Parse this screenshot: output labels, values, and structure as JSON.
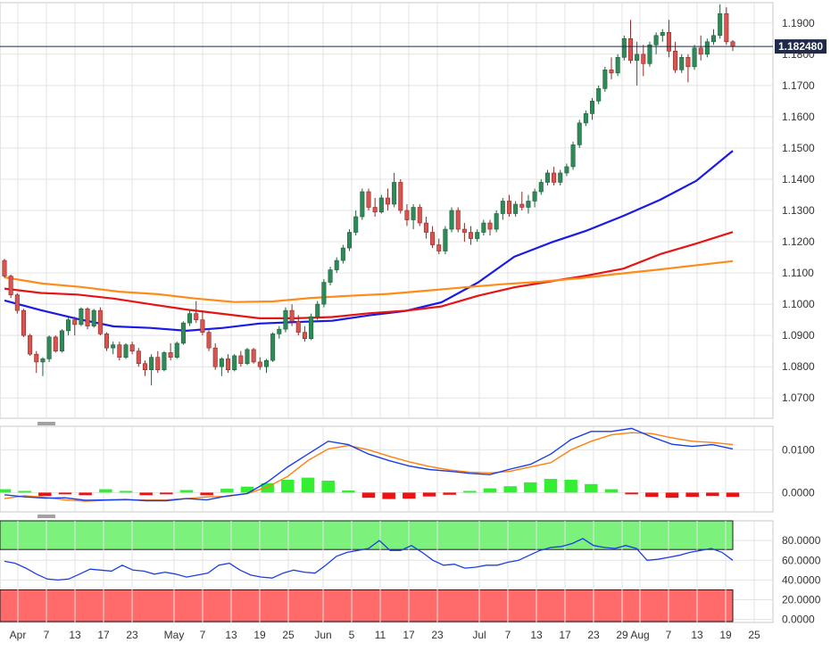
{
  "chart_data": [
    {
      "type": "candlestick",
      "yticks": [
        1.07,
        1.08,
        1.09,
        1.1,
        1.11,
        1.12,
        1.13,
        1.14,
        1.15,
        1.16,
        1.17,
        1.18,
        1.19
      ],
      "ylim": [
        1.0635,
        1.1965
      ],
      "current_price": 1.18248,
      "current_price_label": "1.182480",
      "candles": [
        [
          1.114,
          1.1145,
          1.1085,
          1.109
        ],
        [
          1.109,
          1.1095,
          1.102,
          1.103
        ],
        [
          1.103,
          1.1035,
          1.097,
          1.098
        ],
        [
          1.098,
          1.0985,
          1.0895,
          1.09
        ],
        [
          1.09,
          1.0905,
          1.0835,
          1.084
        ],
        [
          1.084,
          1.085,
          1.078,
          1.0815
        ],
        [
          1.0815,
          1.083,
          1.077,
          1.0825
        ],
        [
          1.0825,
          1.09,
          1.0815,
          1.0895
        ],
        [
          1.0895,
          1.09,
          1.0845,
          1.085
        ],
        [
          1.085,
          1.092,
          1.0845,
          1.0915
        ],
        [
          1.0915,
          1.096,
          1.09,
          1.095
        ],
        [
          1.095,
          1.096,
          1.09,
          1.0935
        ],
        [
          1.0935,
          1.099,
          1.093,
          1.0985
        ],
        [
          1.0985,
          1.099,
          1.092,
          1.093
        ],
        [
          1.093,
          1.0985,
          1.0925,
          1.098
        ],
        [
          1.098,
          1.099,
          1.09,
          1.0905
        ],
        [
          1.0905,
          1.091,
          1.085,
          1.086
        ],
        [
          1.086,
          1.088,
          1.084,
          1.087
        ],
        [
          1.087,
          1.088,
          1.082,
          1.083
        ],
        [
          1.083,
          1.0875,
          1.0825,
          1.087
        ],
        [
          1.087,
          1.088,
          1.084,
          1.085
        ],
        [
          1.085,
          1.086,
          1.08,
          1.081
        ],
        [
          1.081,
          1.082,
          1.077,
          1.079
        ],
        [
          1.079,
          1.084,
          1.074,
          1.083
        ],
        [
          1.083,
          1.085,
          1.078,
          1.079
        ],
        [
          1.079,
          1.085,
          1.0785,
          1.0845
        ],
        [
          1.0845,
          1.0875,
          1.082,
          1.083
        ],
        [
          1.083,
          1.088,
          1.0825,
          1.0875
        ],
        [
          1.0875,
          1.0945,
          1.087,
          1.094
        ],
        [
          1.094,
          1.098,
          1.093,
          1.097
        ],
        [
          1.097,
          1.101,
          1.094,
          1.095
        ],
        [
          1.095,
          1.098,
          1.09,
          1.091
        ],
        [
          1.091,
          1.092,
          1.085,
          1.086
        ],
        [
          1.086,
          1.0875,
          1.079,
          1.08
        ],
        [
          1.08,
          1.083,
          1.077,
          1.0825
        ],
        [
          1.0825,
          1.084,
          1.078,
          1.079
        ],
        [
          1.079,
          1.084,
          1.0785,
          1.0835
        ],
        [
          1.0835,
          1.085,
          1.08,
          1.081
        ],
        [
          1.081,
          1.086,
          1.0805,
          1.0855
        ],
        [
          1.0855,
          1.086,
          1.081,
          1.0815
        ],
        [
          1.0815,
          1.083,
          1.079,
          1.08
        ],
        [
          1.08,
          1.0825,
          1.078,
          1.082
        ],
        [
          1.082,
          1.091,
          1.0815,
          1.0905
        ],
        [
          1.0905,
          1.093,
          1.089,
          1.092
        ],
        [
          1.092,
          1.099,
          1.091,
          1.098
        ],
        [
          1.098,
          1.1,
          1.093,
          1.0945
        ],
        [
          1.0945,
          1.0965,
          1.09,
          1.091
        ],
        [
          1.091,
          1.093,
          1.088,
          1.089
        ],
        [
          1.089,
          1.097,
          1.0885,
          1.096
        ],
        [
          1.096,
          1.101,
          1.095,
          1.1
        ],
        [
          1.1,
          1.108,
          1.099,
          1.107
        ],
        [
          1.107,
          1.112,
          1.106,
          1.111
        ],
        [
          1.111,
          1.115,
          1.11,
          1.114
        ],
        [
          1.114,
          1.119,
          1.113,
          1.118
        ],
        [
          1.118,
          1.124,
          1.117,
          1.123
        ],
        [
          1.123,
          1.13,
          1.122,
          1.128
        ],
        [
          1.128,
          1.137,
          1.127,
          1.136
        ],
        [
          1.136,
          1.137,
          1.13,
          1.131
        ],
        [
          1.131,
          1.134,
          1.128,
          1.1295
        ],
        [
          1.1295,
          1.135,
          1.129,
          1.134
        ],
        [
          1.134,
          1.137,
          1.13,
          1.132
        ],
        [
          1.132,
          1.142,
          1.131,
          1.139
        ],
        [
          1.139,
          1.14,
          1.129,
          1.13
        ],
        [
          1.13,
          1.132,
          1.125,
          1.127
        ],
        [
          1.127,
          1.132,
          1.124,
          1.131
        ],
        [
          1.131,
          1.132,
          1.125,
          1.126
        ],
        [
          1.126,
          1.128,
          1.121,
          1.123
        ],
        [
          1.123,
          1.125,
          1.118,
          1.119
        ],
        [
          1.119,
          1.121,
          1.116,
          1.117
        ],
        [
          1.117,
          1.125,
          1.116,
          1.124
        ],
        [
          1.124,
          1.131,
          1.123,
          1.13
        ],
        [
          1.13,
          1.131,
          1.123,
          1.124
        ],
        [
          1.124,
          1.126,
          1.12,
          1.123
        ],
        [
          1.123,
          1.125,
          1.119,
          1.121
        ],
        [
          1.121,
          1.124,
          1.12,
          1.123
        ],
        [
          1.123,
          1.127,
          1.122,
          1.126
        ],
        [
          1.126,
          1.127,
          1.122,
          1.124
        ],
        [
          1.124,
          1.13,
          1.123,
          1.129
        ],
        [
          1.129,
          1.134,
          1.127,
          1.133
        ],
        [
          1.133,
          1.135,
          1.128,
          1.129
        ],
        [
          1.129,
          1.133,
          1.128,
          1.132
        ],
        [
          1.132,
          1.136,
          1.13,
          1.131
        ],
        [
          1.131,
          1.135,
          1.129,
          1.133
        ],
        [
          1.133,
          1.137,
          1.131,
          1.136
        ],
        [
          1.136,
          1.14,
          1.135,
          1.139
        ],
        [
          1.139,
          1.143,
          1.138,
          1.142
        ],
        [
          1.142,
          1.144,
          1.138,
          1.139
        ],
        [
          1.139,
          1.143,
          1.138,
          1.142
        ],
        [
          1.142,
          1.145,
          1.141,
          1.144
        ],
        [
          1.144,
          1.152,
          1.143,
          1.151
        ],
        [
          1.151,
          1.159,
          1.15,
          1.158
        ],
        [
          1.158,
          1.162,
          1.157,
          1.161
        ],
        [
          1.161,
          1.166,
          1.159,
          1.165
        ],
        [
          1.165,
          1.17,
          1.164,
          1.169
        ],
        [
          1.169,
          1.176,
          1.168,
          1.175
        ],
        [
          1.175,
          1.179,
          1.172,
          1.174
        ],
        [
          1.174,
          1.18,
          1.173,
          1.179
        ],
        [
          1.179,
          1.186,
          1.178,
          1.185
        ],
        [
          1.185,
          1.191,
          1.177,
          1.178
        ],
        [
          1.178,
          1.184,
          1.17,
          1.18
        ],
        [
          1.18,
          1.183,
          1.173,
          1.177
        ],
        [
          1.177,
          1.184,
          1.176,
          1.183
        ],
        [
          1.183,
          1.187,
          1.18,
          1.186
        ],
        [
          1.186,
          1.188,
          1.184,
          1.187
        ],
        [
          1.187,
          1.191,
          1.179,
          1.181
        ],
        [
          1.181,
          1.184,
          1.174,
          1.175
        ],
        [
          1.175,
          1.18,
          1.174,
          1.179
        ],
        [
          1.179,
          1.18,
          1.171,
          1.176
        ],
        [
          1.176,
          1.183,
          1.175,
          1.182
        ],
        [
          1.182,
          1.186,
          1.178,
          1.18
        ],
        [
          1.18,
          1.185,
          1.179,
          1.184
        ],
        [
          1.184,
          1.188,
          1.183,
          1.186
        ],
        [
          1.186,
          1.196,
          1.185,
          1.193
        ],
        [
          1.193,
          1.195,
          1.183,
          1.184
        ],
        [
          1.184,
          1.1845,
          1.181,
          1.1825
        ]
      ],
      "moving_averages": [
        {
          "color": "#1a1ae6",
          "values": [
            1.1012,
            1.0981,
            1.0953,
            1.0929,
            1.0924,
            1.0915,
            1.0924,
            1.0938,
            1.0943,
            1.0947,
            1.0964,
            1.0978,
            1.1006,
            1.1069,
            1.1152,
            1.1197,
            1.1236,
            1.1283,
            1.1334,
            1.1395,
            1.1491
          ]
        },
        {
          "color": "#e61414",
          "values": [
            1.105,
            1.1036,
            1.1031,
            1.1018,
            1.1,
            1.0983,
            1.0969,
            1.0955,
            1.0955,
            1.0959,
            1.0971,
            1.0979,
            1.0993,
            1.1027,
            1.1054,
            1.1073,
            1.1092,
            1.1114,
            1.116,
            1.1194,
            1.1231
          ]
        },
        {
          "color": "#ff8c1a",
          "values": [
            1.1086,
            1.1066,
            1.1055,
            1.104,
            1.1032,
            1.1018,
            1.1007,
            1.1009,
            1.102,
            1.1027,
            1.1033,
            1.1043,
            1.1054,
            1.1064,
            1.1072,
            1.1083,
            1.1097,
            1.111,
            1.1124,
            1.1138
          ]
        }
      ]
    },
    {
      "type": "macd",
      "yticks": [
        0.0,
        0.01
      ],
      "ytick_labels": [
        "0.0000",
        "0.0100"
      ],
      "ylim": [
        -0.0045,
        0.0155
      ],
      "macd_line": [
        -0.0005,
        -0.001,
        -0.0013,
        -0.0012,
        -0.0018,
        -0.0017,
        -0.0016,
        -0.0019,
        -0.0019,
        -0.0014,
        -0.0017,
        -0.0008,
        -0.0002,
        0.0025,
        0.006,
        0.009,
        0.012,
        0.0112,
        0.009,
        0.0075,
        0.0062,
        0.0054,
        0.005,
        0.0045,
        0.0042,
        0.0055,
        0.0066,
        0.009,
        0.0124,
        0.0143,
        0.0143,
        0.015,
        0.013,
        0.0113,
        0.0108,
        0.0112,
        0.0102
      ],
      "signal_line": [
        -0.0014,
        -0.0007,
        -0.0011,
        -0.0017,
        -0.002,
        -0.0018,
        -0.0017,
        -0.0017,
        -0.0017,
        -0.0014,
        -0.001,
        -0.0009,
        -0.0002,
        0.0013,
        0.0038,
        0.0075,
        0.0102,
        0.011,
        0.01,
        0.0085,
        0.0072,
        0.0061,
        0.0053,
        0.0048,
        0.0046,
        0.005,
        0.006,
        0.007,
        0.01,
        0.012,
        0.0135,
        0.014,
        0.0138,
        0.0128,
        0.012,
        0.0117,
        0.0112
      ],
      "histogram": [
        0.0008,
        0.0004,
        -0.0008,
        -0.0004,
        -0.0006,
        0.0008,
        0.0004,
        -0.0006,
        -0.0004,
        0.0006,
        -0.0006,
        0.0009,
        0.0014,
        0.0022,
        0.003,
        0.0035,
        0.0028,
        0.0005,
        -0.0012,
        -0.0015,
        -0.0014,
        -0.0009,
        -0.0005,
        0.0004,
        0.001,
        0.0015,
        0.0024,
        0.0032,
        0.003,
        0.002,
        0.0008,
        -0.0004,
        -0.001,
        -0.0012,
        -0.001,
        -0.0008,
        -0.001
      ]
    },
    {
      "type": "oscillator",
      "yticks": [
        0,
        20,
        40,
        60,
        80
      ],
      "ytick_labels": [
        "0.0000",
        "20.0000",
        "40.0000",
        "60.0000",
        "80.0000"
      ],
      "ylim": [
        -3,
        100
      ],
      "overbought_level": 70,
      "oversold_level": 30,
      "values": [
        59,
        57,
        52,
        46,
        41,
        40,
        41,
        46,
        51,
        50,
        49,
        55,
        50,
        49,
        46,
        48,
        46,
        43,
        45,
        47,
        55,
        57,
        50,
        45,
        43,
        42,
        47,
        50,
        48,
        47,
        55,
        64,
        68,
        70,
        72,
        80,
        70,
        70,
        75,
        68,
        60,
        55,
        56,
        52,
        53,
        55,
        55,
        58,
        60,
        65,
        70,
        73,
        74,
        77,
        82,
        75,
        73,
        72,
        75,
        72,
        60,
        61,
        63,
        65,
        68,
        70,
        72,
        68,
        60
      ]
    }
  ],
  "x_axis": {
    "labels": [
      "Apr",
      "7",
      "13",
      "17",
      "23",
      "May",
      "7",
      "13",
      "19",
      "25",
      "Jun",
      "5",
      "11",
      "17",
      "23",
      "Jul",
      "7",
      "13",
      "17",
      "23",
      "29",
      "Aug",
      "7",
      "13",
      "19",
      "25"
    ]
  }
}
